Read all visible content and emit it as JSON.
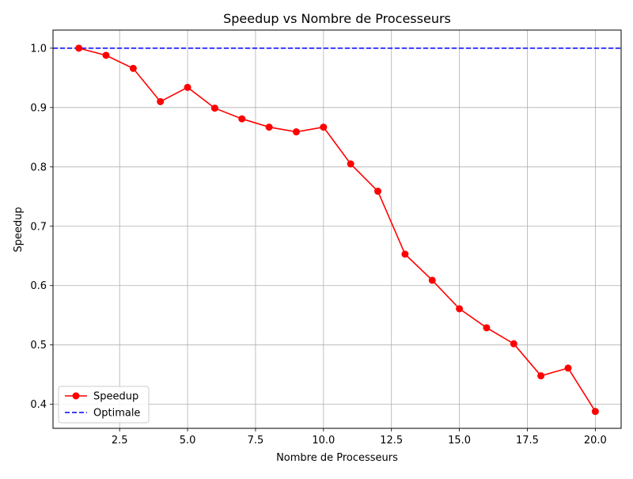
{
  "chart_data": {
    "type": "line",
    "title": "Speedup vs Nombre de Processeurs",
    "xlabel": "Nombre de Processeurs",
    "ylabel": "Speedup",
    "xlim": [
      0.05,
      20.95
    ],
    "ylim": [
      0.3595,
      1.0305
    ],
    "grid": true,
    "legend_position": "lower-left",
    "x_ticks": [
      2.5,
      5.0,
      7.5,
      10.0,
      12.5,
      15.0,
      17.5,
      20.0
    ],
    "x_tick_labels": [
      "2.5",
      "5.0",
      "7.5",
      "10.0",
      "12.5",
      "15.0",
      "17.5",
      "20.0"
    ],
    "y_ticks": [
      0.4,
      0.5,
      0.6,
      0.7,
      0.8,
      0.9,
      1.0
    ],
    "y_tick_labels": [
      "0.4",
      "0.5",
      "0.6",
      "0.7",
      "0.8",
      "0.9",
      "1.0"
    ],
    "x": [
      1,
      2,
      3,
      4,
      5,
      6,
      7,
      8,
      9,
      10,
      11,
      12,
      13,
      14,
      15,
      16,
      17,
      18,
      19,
      20
    ],
    "series": [
      {
        "name": "Speedup",
        "color": "#ff0000",
        "style": "solid-with-markers",
        "values": [
          1.0,
          0.988,
          0.966,
          0.91,
          0.934,
          0.899,
          0.881,
          0.867,
          0.859,
          0.867,
          0.805,
          0.759,
          0.653,
          0.609,
          0.561,
          0.529,
          0.502,
          0.448,
          0.461,
          0.388
        ]
      },
      {
        "name": "Optimale",
        "color": "#0000ff",
        "style": "dashed-horizontal",
        "value": 1.0
      }
    ]
  }
}
